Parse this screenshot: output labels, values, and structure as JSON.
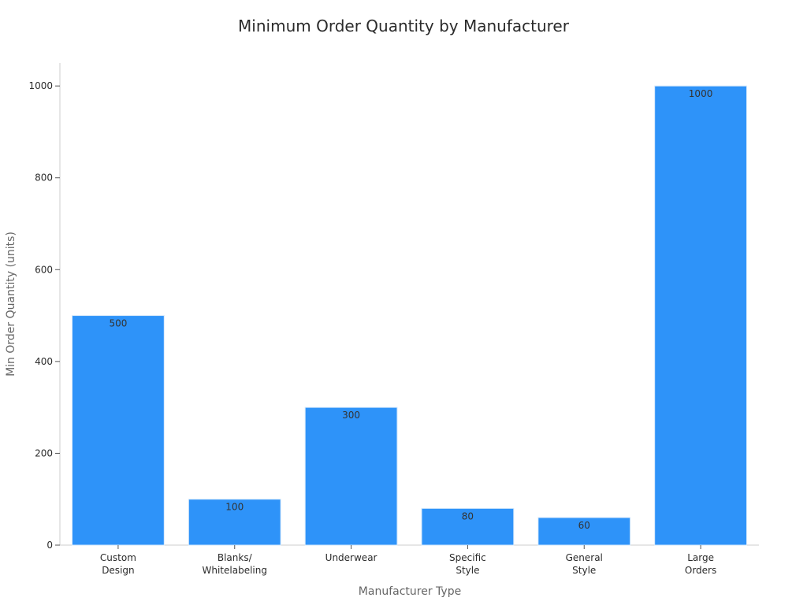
{
  "chart_data": {
    "type": "bar",
    "title": "Minimum Order Quantity by Manufacturer",
    "xlabel": "Manufacturer Type",
    "ylabel": "Min Order Quantity (units)",
    "categories": [
      [
        "Custom",
        "Design"
      ],
      [
        "Blanks/",
        "Whitelabeling"
      ],
      [
        "Underwear"
      ],
      [
        "Specific",
        "Style"
      ],
      [
        "General",
        "Style"
      ],
      [
        "Large",
        "Orders"
      ]
    ],
    "values": [
      500,
      100,
      300,
      80,
      60,
      1000
    ],
    "ylim": [
      0,
      1050
    ],
    "yticks": [
      0,
      200,
      400,
      600,
      800,
      1000
    ],
    "bar_color": "#2e93f9",
    "grid": false,
    "data_labels": true
  }
}
